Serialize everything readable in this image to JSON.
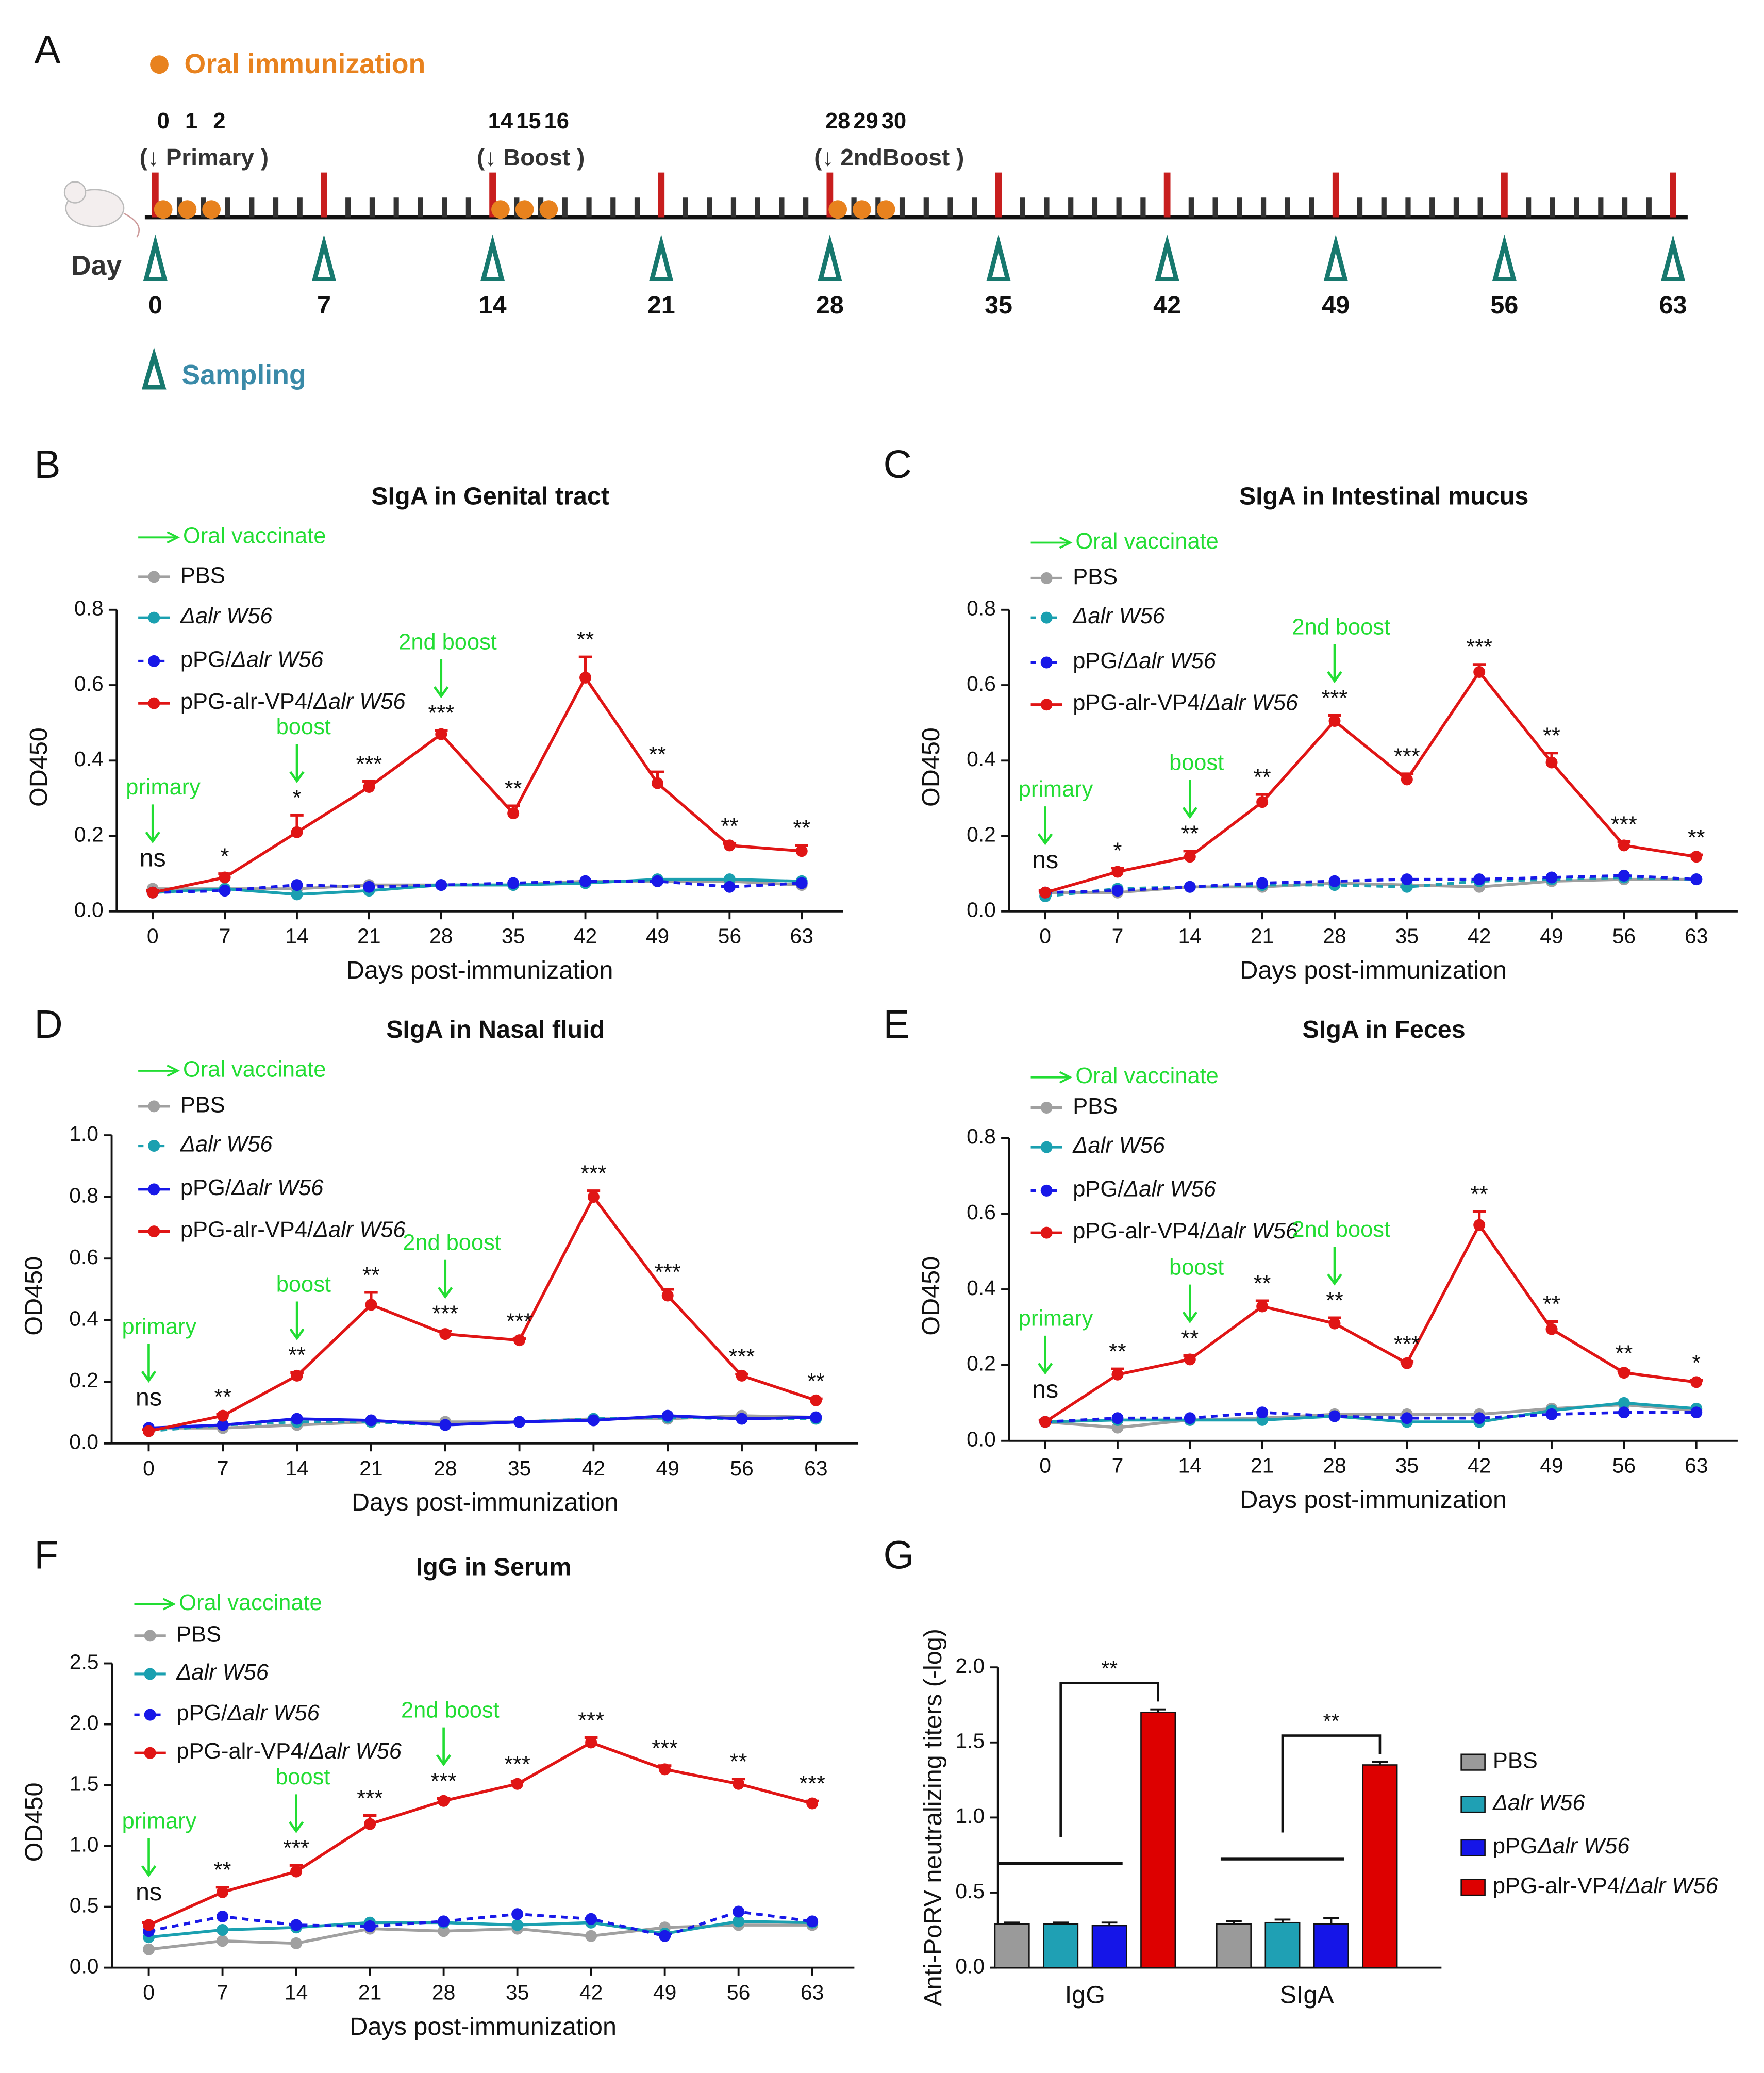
{
  "timeline": {
    "panel_label": "A",
    "immunization_legend": "Oral immunization",
    "sampling_legend": "Sampling",
    "day_label": "Day",
    "days": [
      0,
      7,
      14,
      21,
      28,
      35,
      42,
      49,
      56,
      63
    ],
    "immunization_days": [
      0,
      1,
      2,
      14,
      15,
      16,
      28,
      29,
      30
    ],
    "phases": [
      {
        "label": "(↓ Primary )",
        "day": 0
      },
      {
        "label": "(↓ Boost )",
        "day": 14
      },
      {
        "label": "(↓ 2ndBoost )",
        "day": 28
      }
    ]
  },
  "chart_data": [
    {
      "type": "line",
      "panel_label": "B",
      "title": "SIgA in Genital tract",
      "x_label": "Days post-immunization",
      "y_label": "OD450",
      "arrow_legend": "Oral vaccinate",
      "x": [
        0,
        7,
        14,
        21,
        28,
        35,
        42,
        49,
        56,
        63
      ],
      "xlim": [
        -3.5,
        67
      ],
      "xticks": [
        0,
        7,
        14,
        21,
        28,
        35,
        42,
        49,
        56,
        63
      ],
      "ylim": [
        0,
        0.8
      ],
      "yticks": [
        {
          "value": 0,
          "label": "0.0"
        },
        0.2,
        0.4,
        0.6,
        0.8
      ],
      "series": [
        {
          "name": "PBS",
          "color": "#a0a0a0",
          "dash": false,
          "values": [
            0.06,
            0.06,
            0.06,
            0.07,
            0.07,
            0.07,
            0.08,
            0.08,
            0.08,
            0.07
          ]
        },
        {
          "name": "Δalr W56",
          "color": "#1aa0b0",
          "dash": false,
          "values": [
            0.05,
            0.06,
            0.045,
            0.055,
            0.07,
            0.07,
            0.075,
            0.085,
            0.085,
            0.08
          ]
        },
        {
          "name": "pPG/Δalr W56",
          "color": "#1818e8",
          "dash": true,
          "values": [
            0.05,
            0.055,
            0.07,
            0.065,
            0.07,
            0.075,
            0.08,
            0.08,
            0.065,
            0.075
          ]
        },
        {
          "name": "pPG-alr-VP4/Δalr W56",
          "color": "#e01515",
          "dash": false,
          "values": [
            0.05,
            0.09,
            0.21,
            0.33,
            0.47,
            0.26,
            0.62,
            0.34,
            0.175,
            0.16
          ],
          "errors": [
            0.005,
            0.01,
            0.045,
            0.015,
            0.01,
            0.02,
            0.055,
            0.03,
            0.005,
            0.015
          ]
        }
      ],
      "stars": [
        "ns",
        "*",
        "*",
        "***",
        "***",
        "**",
        "**",
        "**",
        "**",
        "**"
      ],
      "events": [
        {
          "label": "primary",
          "x": 0
        },
        {
          "label": "boost",
          "x": 14
        },
        {
          "label": "2nd boost",
          "x": 28
        }
      ]
    },
    {
      "type": "line",
      "panel_label": "C",
      "title": "SIgA in Intestinal mucus",
      "x_label": "Days post-immunization",
      "y_label": "OD450",
      "arrow_legend": "Oral vaccinate",
      "x": [
        0,
        7,
        14,
        21,
        28,
        35,
        42,
        49,
        56,
        63
      ],
      "xlim": [
        -3.5,
        67
      ],
      "xticks": [
        0,
        7,
        14,
        21,
        28,
        35,
        42,
        49,
        56,
        63
      ],
      "ylim": [
        0,
        0.8
      ],
      "yticks": [
        {
          "value": 0,
          "label": "0.0"
        },
        0.2,
        0.4,
        0.6,
        0.8
      ],
      "series": [
        {
          "name": "PBS",
          "color": "#a0a0a0",
          "dash": false,
          "values": [
            0.05,
            0.05,
            0.065,
            0.065,
            0.075,
            0.07,
            0.065,
            0.08,
            0.085,
            0.085
          ]
        },
        {
          "name": "Δalr W56",
          "color": "#1aa0b0",
          "dash": true,
          "values": [
            0.04,
            0.06,
            0.065,
            0.07,
            0.07,
            0.065,
            0.08,
            0.085,
            0.09,
            0.085
          ]
        },
        {
          "name": "pPG/Δalr W56",
          "color": "#1818e8",
          "dash": true,
          "values": [
            0.05,
            0.055,
            0.065,
            0.075,
            0.08,
            0.085,
            0.085,
            0.09,
            0.095,
            0.085
          ]
        },
        {
          "name": "pPG-alr-VP4/Δalr W56",
          "color": "#e01515",
          "dash": false,
          "values": [
            0.05,
            0.105,
            0.145,
            0.29,
            0.505,
            0.35,
            0.635,
            0.395,
            0.175,
            0.145
          ],
          "errors": [
            0.005,
            0.01,
            0.015,
            0.02,
            0.015,
            0.015,
            0.02,
            0.025,
            0.01,
            0.005
          ]
        }
      ],
      "stars": [
        "ns",
        "*",
        "**",
        "**",
        "***",
        "***",
        "***",
        "**",
        "***",
        "**"
      ],
      "events": [
        {
          "label": "primary",
          "x": 0
        },
        {
          "label": "boost",
          "x": 14
        },
        {
          "label": "2nd boost",
          "x": 28
        }
      ]
    },
    {
      "type": "line",
      "panel_label": "D",
      "title": "SIgA in Nasal fluid",
      "x_label": "Days post-immunization",
      "y_label": "OD450",
      "arrow_legend": "Oral vaccinate",
      "x": [
        0,
        7,
        14,
        21,
        28,
        35,
        42,
        49,
        56,
        63
      ],
      "xlim": [
        -3.5,
        67
      ],
      "xticks": [
        0,
        7,
        14,
        21,
        28,
        35,
        42,
        49,
        56,
        63
      ],
      "ylim": [
        0,
        1
      ],
      "yticks": [
        {
          "value": 0,
          "label": "0.0"
        },
        0.2,
        0.4,
        0.6,
        0.8,
        {
          "value": 1,
          "label": "1.0"
        }
      ],
      "series": [
        {
          "name": "PBS",
          "color": "#a0a0a0",
          "dash": false,
          "values": [
            0.05,
            0.05,
            0.06,
            0.07,
            0.07,
            0.07,
            0.08,
            0.08,
            0.09,
            0.085
          ]
        },
        {
          "name": "Δalr W56",
          "color": "#1aa0b0",
          "dash": true,
          "values": [
            0.04,
            0.06,
            0.07,
            0.07,
            0.06,
            0.07,
            0.08,
            0.085,
            0.08,
            0.08
          ]
        },
        {
          "name": "pPG/Δalr W56",
          "color": "#1818e8",
          "dash": false,
          "values": [
            0.05,
            0.06,
            0.08,
            0.075,
            0.06,
            0.07,
            0.075,
            0.09,
            0.08,
            0.085
          ]
        },
        {
          "name": "pPG-alr-VP4/Δalr W56",
          "color": "#e01515",
          "dash": false,
          "values": [
            0.04,
            0.09,
            0.22,
            0.45,
            0.355,
            0.335,
            0.8,
            0.48,
            0.22,
            0.14
          ],
          "errors": [
            0.005,
            0.005,
            0.01,
            0.04,
            0.01,
            0.005,
            0.02,
            0.02,
            0.005,
            0.005
          ]
        }
      ],
      "stars": [
        "ns",
        "**",
        "**",
        "**",
        "***",
        "***",
        "***",
        "***",
        "***",
        "**"
      ],
      "events": [
        {
          "label": "primary",
          "x": 0
        },
        {
          "label": "boost",
          "x": 14
        },
        {
          "label": "2nd boost",
          "x": 28
        }
      ]
    },
    {
      "type": "line",
      "panel_label": "E",
      "title": "SIgA in Feces",
      "x_label": "Days post-immunization",
      "y_label": "OD450",
      "arrow_legend": "Oral vaccinate",
      "x": [
        0,
        7,
        14,
        21,
        28,
        35,
        42,
        49,
        56,
        63
      ],
      "xlim": [
        -3.5,
        67
      ],
      "xticks": [
        0,
        7,
        14,
        21,
        28,
        35,
        42,
        49,
        56,
        63
      ],
      "ylim": [
        0,
        0.8
      ],
      "yticks": [
        {
          "value": 0,
          "label": "0.0"
        },
        0.2,
        0.4,
        0.6,
        0.8
      ],
      "series": [
        {
          "name": "PBS",
          "color": "#a0a0a0",
          "dash": false,
          "values": [
            0.05,
            0.035,
            0.055,
            0.06,
            0.07,
            0.07,
            0.07,
            0.085,
            0.095,
            0.08
          ]
        },
        {
          "name": "Δalr W56",
          "color": "#1aa0b0",
          "dash": false,
          "values": [
            0.05,
            0.055,
            0.055,
            0.055,
            0.065,
            0.05,
            0.05,
            0.08,
            0.1,
            0.085
          ]
        },
        {
          "name": "pPG/Δalr W56",
          "color": "#1818e8",
          "dash": true,
          "values": [
            0.05,
            0.06,
            0.06,
            0.075,
            0.065,
            0.06,
            0.06,
            0.07,
            0.075,
            0.075
          ]
        },
        {
          "name": "pPG-alr-VP4/Δalr W56",
          "color": "#e01515",
          "dash": false,
          "values": [
            0.05,
            0.175,
            0.215,
            0.355,
            0.31,
            0.205,
            0.57,
            0.295,
            0.18,
            0.155
          ],
          "errors": [
            0.005,
            0.015,
            0.01,
            0.015,
            0.015,
            0.005,
            0.035,
            0.02,
            0.005,
            0.005
          ]
        }
      ],
      "stars": [
        "ns",
        "**",
        "**",
        "**",
        "**",
        "***",
        "**",
        "**",
        "**",
        "*"
      ],
      "events": [
        {
          "label": "primary",
          "x": 0
        },
        {
          "label": "boost",
          "x": 14
        },
        {
          "label": "2nd boost",
          "x": 28
        }
      ]
    },
    {
      "type": "line",
      "panel_label": "F",
      "title": "IgG in Serum",
      "x_label": "Days post-immunization",
      "y_label": "OD450",
      "arrow_legend": "Oral vaccinate",
      "x": [
        0,
        7,
        14,
        21,
        28,
        35,
        42,
        49,
        56,
        63
      ],
      "xlim": [
        -3.5,
        67
      ],
      "xticks": [
        0,
        7,
        14,
        21,
        28,
        35,
        42,
        49,
        56,
        63
      ],
      "ylim": [
        0,
        2.5
      ],
      "yticks": [
        {
          "value": 0,
          "label": "0.0"
        },
        0.5,
        {
          "value": 1,
          "label": "1.0"
        },
        1.5,
        {
          "value": 2,
          "label": "2.0"
        },
        2.5
      ],
      "series": [
        {
          "name": "PBS",
          "color": "#a0a0a0",
          "dash": false,
          "values": [
            0.15,
            0.22,
            0.2,
            0.32,
            0.3,
            0.32,
            0.26,
            0.33,
            0.35,
            0.35
          ]
        },
        {
          "name": "Δalr W56",
          "color": "#1aa0b0",
          "dash": false,
          "values": [
            0.25,
            0.31,
            0.33,
            0.37,
            0.37,
            0.35,
            0.37,
            0.28,
            0.38,
            0.37
          ]
        },
        {
          "name": "pPG/Δalr W56",
          "color": "#1818e8",
          "dash": true,
          "values": [
            0.3,
            0.42,
            0.35,
            0.34,
            0.38,
            0.44,
            0.4,
            0.26,
            0.46,
            0.38
          ]
        },
        {
          "name": "pPG-alr-VP4/Δalr W56",
          "color": "#e01515",
          "dash": false,
          "values": [
            0.35,
            0.62,
            0.79,
            1.18,
            1.37,
            1.51,
            1.85,
            1.63,
            1.51,
            1.35
          ],
          "errors": [
            0.02,
            0.04,
            0.05,
            0.07,
            0.02,
            0.02,
            0.04,
            0.03,
            0.04,
            0.02
          ]
        }
      ],
      "stars": [
        "ns",
        "**",
        "***",
        "***",
        "***",
        "***",
        "***",
        "***",
        "**",
        "***"
      ],
      "events": [
        {
          "label": "primary",
          "x": 0
        },
        {
          "label": "boost",
          "x": 14
        },
        {
          "label": "2nd boost",
          "x": 28
        }
      ]
    },
    {
      "type": "bar",
      "panel_label": "G",
      "y_label": "Anti-PoRV neutralizing titers (-log)",
      "categories": [
        "IgG",
        "SIgA"
      ],
      "ylim": [
        0,
        2
      ],
      "yticks": [
        {
          "value": 0,
          "label": "0.0"
        },
        0.5,
        {
          "value": 1,
          "label": "1.0"
        },
        1.5,
        {
          "value": 2,
          "label": "2.0"
        }
      ],
      "series": [
        {
          "name": "PBS",
          "color": "#9a9a9a",
          "values": [
            0.29,
            0.29
          ],
          "errors": [
            0.01,
            0.02
          ]
        },
        {
          "name": "Δalr W56",
          "color": "#1fa0b4",
          "values": [
            0.29,
            0.3
          ],
          "errors": [
            0.01,
            0.02
          ]
        },
        {
          "name": "pPGΔalr W56",
          "color": "#1515e8",
          "values": [
            0.28,
            0.29
          ],
          "errors": [
            0.02,
            0.04
          ]
        },
        {
          "name": "pPG-alr-VP4/Δalr W56",
          "color": "#dd0000",
          "values": [
            1.7,
            1.35
          ],
          "errors": [
            0.02,
            0.02
          ]
        }
      ],
      "significance": [
        "**",
        "**"
      ]
    }
  ]
}
